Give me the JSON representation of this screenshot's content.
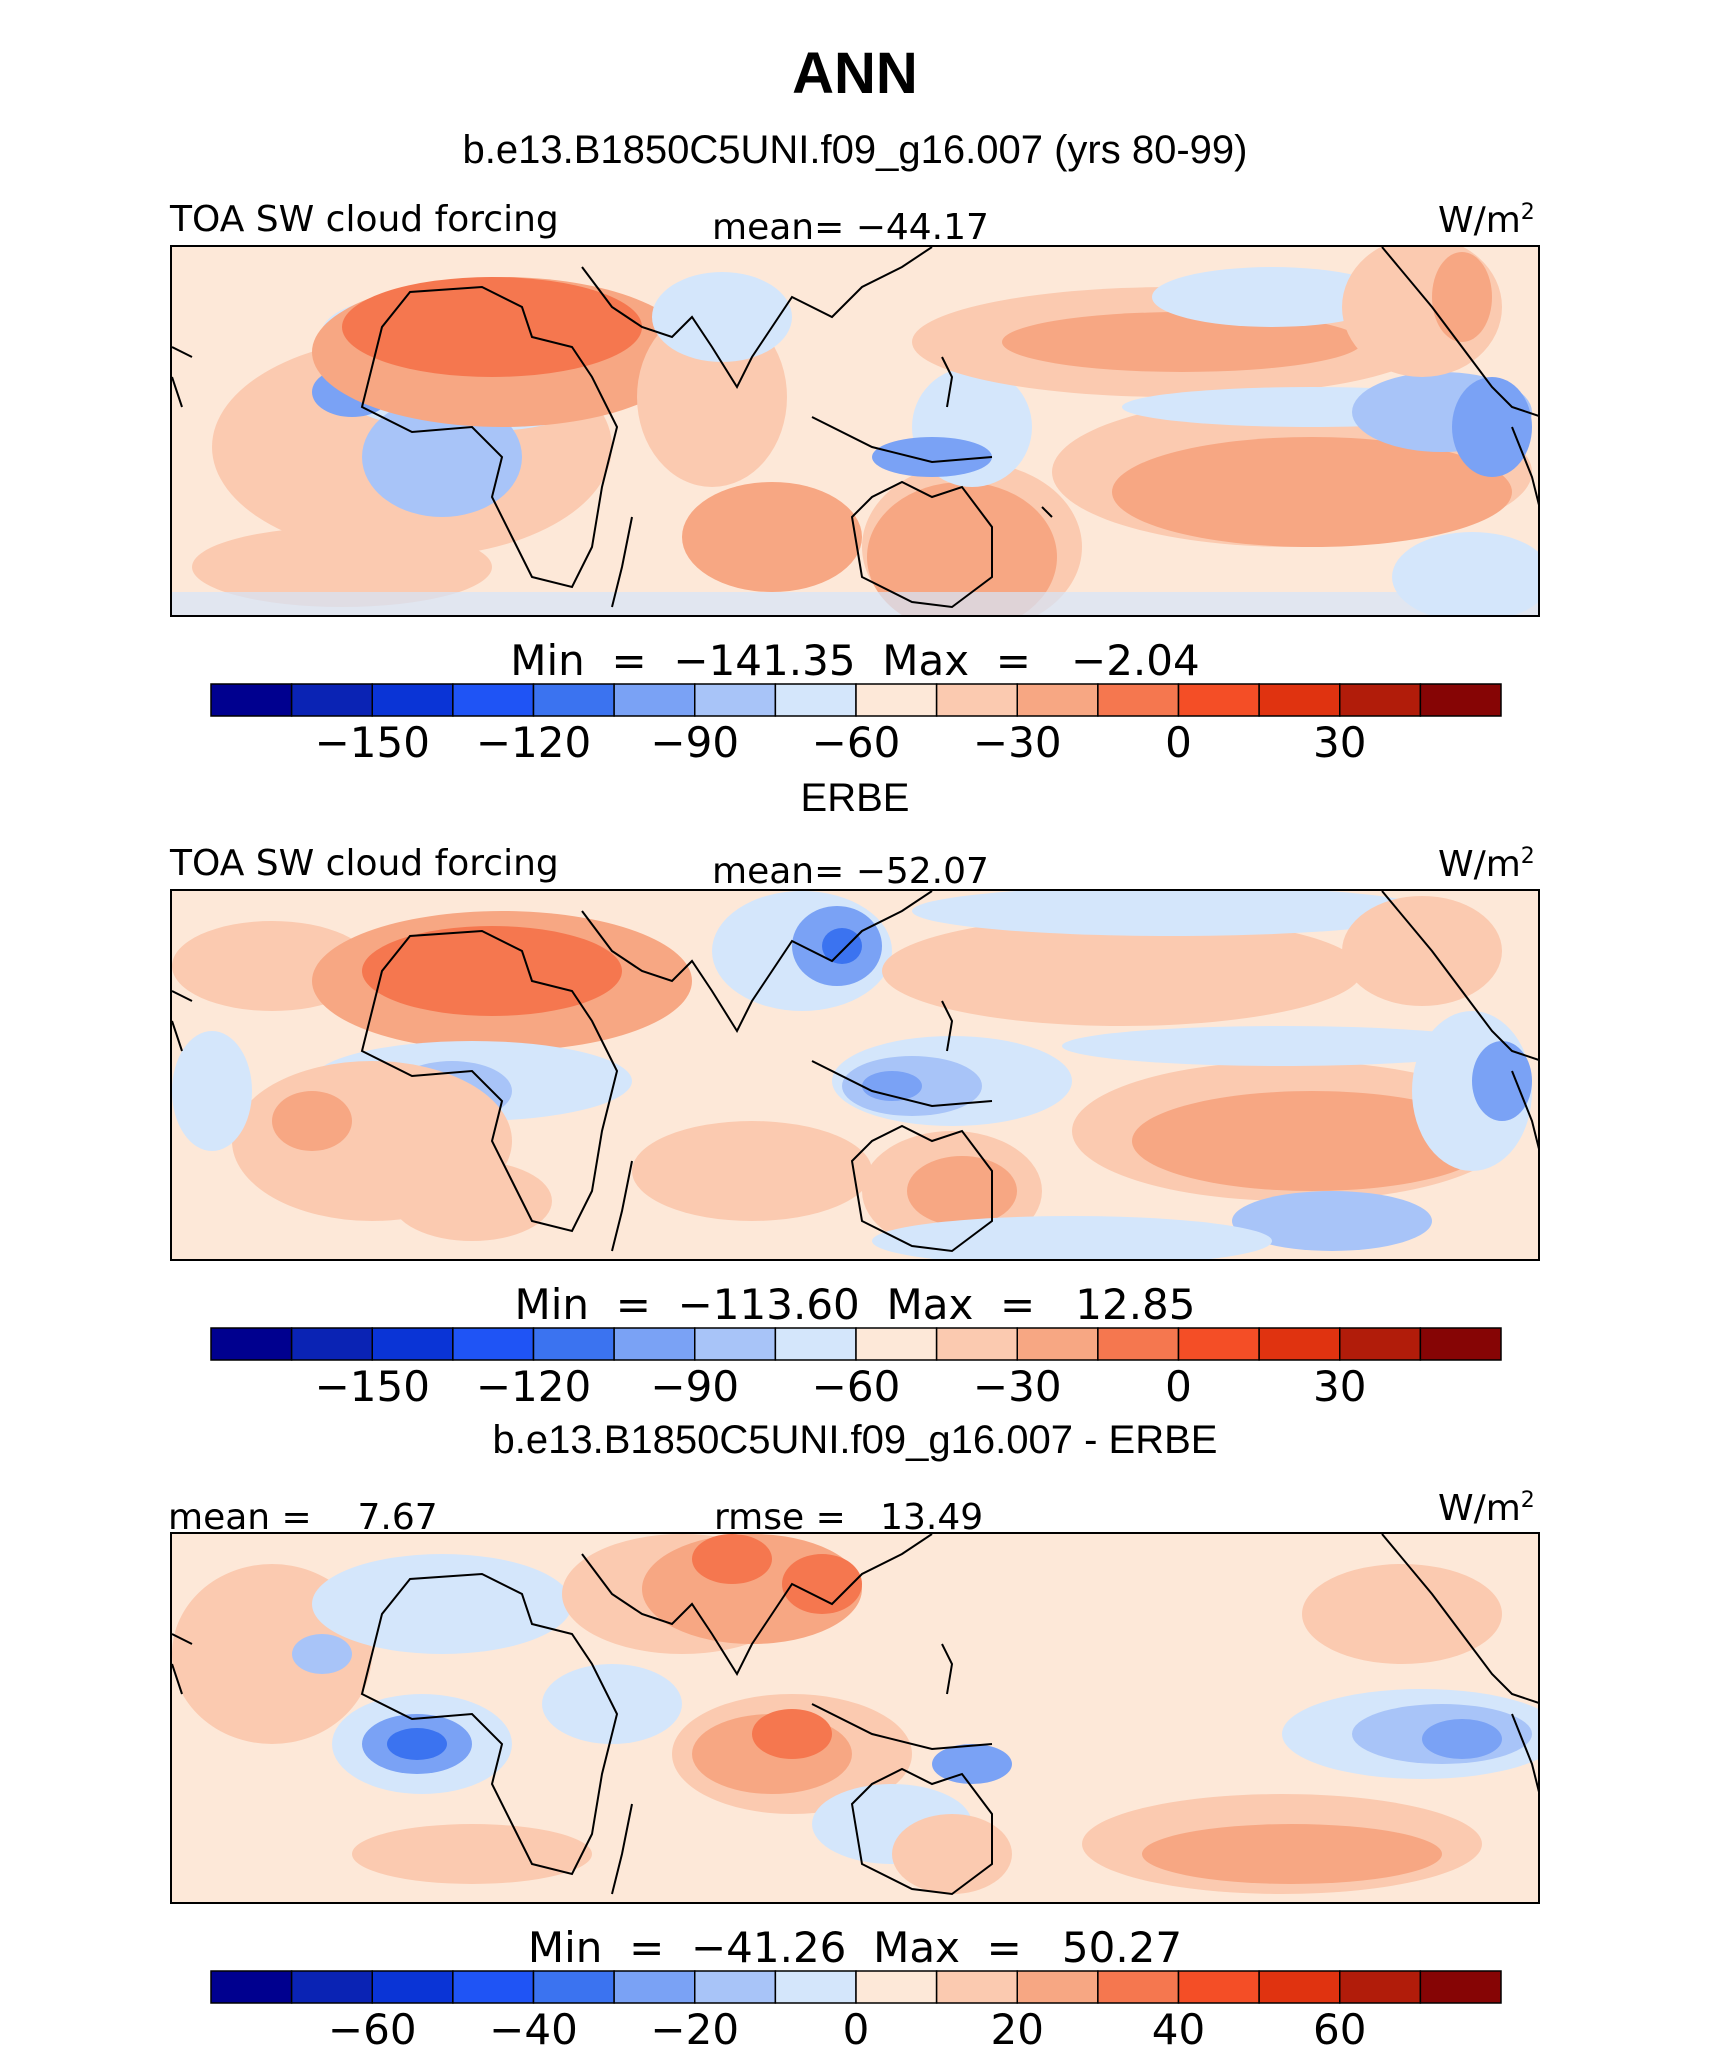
{
  "title": "ANN",
  "panels": [
    {
      "heading": "b.e13.B1850C5UNI.f09_g16.007 (yrs 80-99)",
      "left_label": "TOA SW cloud forcing",
      "center_label": "mean= −44.17",
      "units": "W/m",
      "units_sup": "2",
      "minmax": "Min  =  −141.35  Max  =   −2.04",
      "colorbar": {
        "colors": [
          "#00008f",
          "#0a23b4",
          "#0a34d6",
          "#1f54f5",
          "#3b73f0",
          "#7aa2f5",
          "#a8c4f8",
          "#d4e6fb",
          "#fde8d8",
          "#fbcab0",
          "#f7a783",
          "#f5774f",
          "#f44e26",
          "#e03310",
          "#b11c0a",
          "#860505"
        ],
        "tick_labels": [
          "−150",
          "−120",
          "−90",
          "−60",
          "−30",
          "0",
          "30"
        ]
      }
    },
    {
      "heading": "ERBE",
      "left_label": "TOA SW cloud forcing",
      "center_label": "mean= −52.07",
      "units": "W/m",
      "units_sup": "2",
      "minmax": "Min  =  −113.60  Max  =   12.85",
      "colorbar": {
        "colors": [
          "#00008f",
          "#0a23b4",
          "#0a34d6",
          "#1f54f5",
          "#3b73f0",
          "#7aa2f5",
          "#a8c4f8",
          "#d4e6fb",
          "#fde8d8",
          "#fbcab0",
          "#f7a783",
          "#f5774f",
          "#f44e26",
          "#e03310",
          "#b11c0a",
          "#860505"
        ],
        "tick_labels": [
          "−150",
          "−120",
          "−90",
          "−60",
          "−30",
          "0",
          "30"
        ]
      }
    },
    {
      "heading": "b.e13.B1850C5UNI.f09_g16.007 - ERBE",
      "left_label": "mean =    7.67",
      "center_label": "rmse =   13.49",
      "units": "W/m",
      "units_sup": "2",
      "minmax": "Min  =  −41.26  Max  =   50.27",
      "colorbar": {
        "colors": [
          "#00008f",
          "#0a23b4",
          "#0a34d6",
          "#1f54f5",
          "#3b73f0",
          "#7aa2f5",
          "#a8c4f8",
          "#d4e6fb",
          "#fde8d8",
          "#fbcab0",
          "#f7a783",
          "#f5774f",
          "#f44e26",
          "#e03310",
          "#b11c0a",
          "#860505"
        ],
        "tick_labels": [
          "−60",
          "−40",
          "−20",
          "0",
          "20",
          "40",
          "60"
        ]
      }
    }
  ]
}
